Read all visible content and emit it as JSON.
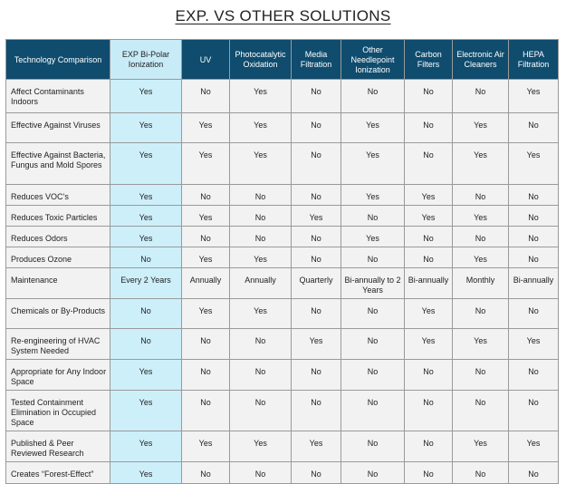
{
  "title": "EXP. VS OTHER SOLUTIONS",
  "table": {
    "header": [
      "Technology Comparison",
      "EXP Bi-Polar Ionization",
      "UV",
      "Photocatalytic Oxidation",
      "Media Filtration",
      "Other Needlepoint Ionization",
      "Carbon Filters",
      "Electronic Air Cleaners",
      "HEPA Filtration"
    ],
    "rows": [
      [
        "Affect Contaminants Indoors",
        "Yes",
        "No",
        "Yes",
        "No",
        "No",
        "No",
        "No",
        "Yes"
      ],
      [
        "Effective Against Viruses",
        "Yes",
        "Yes",
        "Yes",
        "No",
        "Yes",
        "No",
        "Yes",
        "No"
      ],
      [
        "Effective Against Bacteria, Fungus and Mold Spores",
        "Yes",
        "Yes",
        "Yes",
        "No",
        "Yes",
        "No",
        "Yes",
        "Yes"
      ],
      [
        "Reduces VOC’s",
        "Yes",
        "No",
        "No",
        "No",
        "Yes",
        "Yes",
        "No",
        "No"
      ],
      [
        "Reduces Toxic Particles",
        "Yes",
        "Yes",
        "No",
        "Yes",
        "No",
        "Yes",
        "Yes",
        "No"
      ],
      [
        "Reduces Odors",
        "Yes",
        "No",
        "No",
        "No",
        "Yes",
        "No",
        "No",
        "No"
      ],
      [
        "Produces Ozone",
        "No",
        "Yes",
        "Yes",
        "No",
        "No",
        "No",
        "Yes",
        "No"
      ],
      [
        "Maintenance",
        "Every 2 Years",
        "Annually",
        "Annually",
        "Quarterly",
        "Bi-annually to 2 Years",
        "Bi-annually",
        "Monthly",
        "Bi-annually"
      ],
      [
        "Chemicals or By-Products",
        "No",
        "Yes",
        "Yes",
        "No",
        "No",
        "Yes",
        "No",
        "No"
      ],
      [
        "Re-engineering of HVAC System Needed",
        "No",
        "No",
        "No",
        "Yes",
        "No",
        "Yes",
        "Yes",
        "Yes"
      ],
      [
        "Appropriate for Any Indoor Space",
        "Yes",
        "No",
        "No",
        "No",
        "No",
        "No",
        "No",
        "No"
      ],
      [
        "Tested Containment Elimination in Occupied Space",
        "Yes",
        "No",
        "No",
        "No",
        "No",
        "No",
        "No",
        "No"
      ],
      [
        "Published & Peer Reviewed Research",
        "Yes",
        "Yes",
        "Yes",
        "Yes",
        "No",
        "No",
        "Yes",
        "Yes"
      ],
      [
        "Creates “Forest-Effect”",
        "Yes",
        "No",
        "No",
        "No",
        "No",
        "No",
        "No",
        "No"
      ]
    ]
  }
}
